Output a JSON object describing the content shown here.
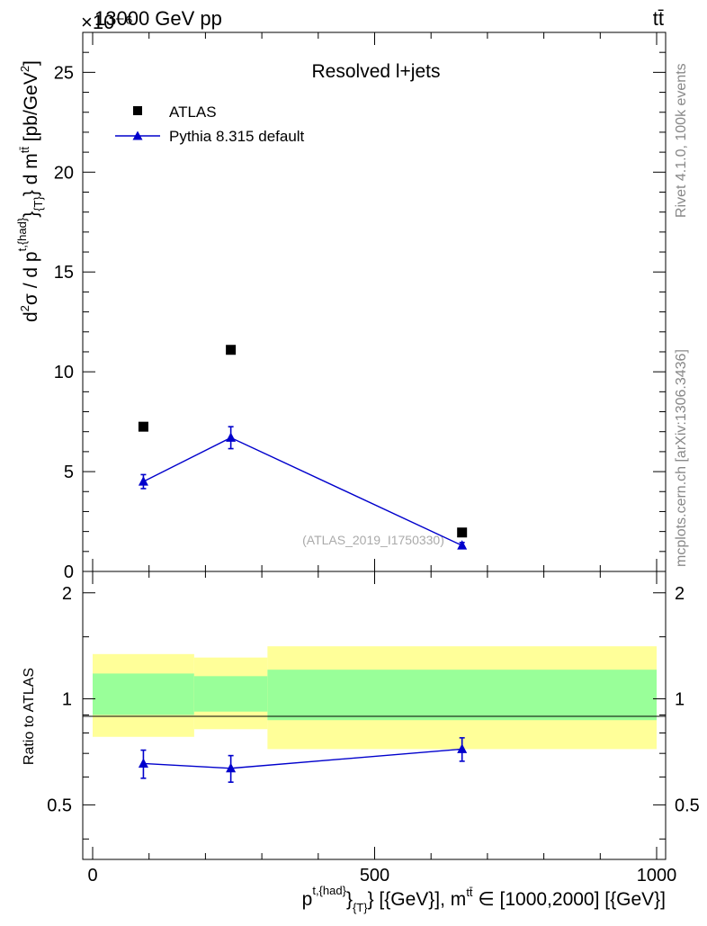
{
  "header": {
    "process": "13000 GeV pp",
    "process_glyph": "tt̄",
    "exponent_label": "×10⁻⁶",
    "side_rivet": "Rivet 4.1.0,  100k events",
    "side_source": "mcplots.cern.ch [arXiv:1306.3436]"
  },
  "colors": {
    "data": "#000000",
    "mc": "#0000cc",
    "band_outer": "#ffff99",
    "band_inner": "#99ff99"
  },
  "chart_data": [
    {
      "type": "scatter",
      "title": "Resolved l+jets",
      "watermark": "(ATLAS_2019_I1750330)",
      "ylabel": "d²σ / d p^{t,{had}}_{T} d m^{tt̄} [pb/GeV²]",
      "ylabel_parts": {
        "pre": "d",
        "sup1": "2",
        "mid1": "σ / d p",
        "sup2": "t,{had}",
        "mid2": "}",
        "sub2": "{T}",
        "mid3": "} d m",
        "sup3": "tt̄",
        "post": " [pb/GeV",
        "sup4": "2",
        "end": "]"
      },
      "xlim": [
        0,
        1000
      ],
      "ylim": [
        0,
        27
      ],
      "yticks": [
        "0",
        "5",
        "10",
        "15",
        "20",
        "25"
      ],
      "ytick_values": [
        0,
        5,
        10,
        15,
        20,
        25
      ],
      "legend": [
        "ATLAS",
        "Pythia 8.315 default"
      ],
      "series": [
        {
          "name": "ATLAS",
          "marker": "square",
          "x": [
            90,
            245,
            655
          ],
          "y": [
            7.25,
            11.1,
            1.95
          ]
        },
        {
          "name": "Pythia 8.315 default",
          "marker": "triangle",
          "x": [
            90,
            245,
            655
          ],
          "y": [
            4.5,
            6.7,
            1.3
          ],
          "yerr": [
            0.35,
            0.55,
            0.15
          ]
        }
      ]
    },
    {
      "type": "line",
      "ylabel": "Ratio to ATLAS",
      "xlabel": "p^{t,{had}}_{T} [{GeV}], m^{tt̄} ∈ [1000,2000] [{GeV}]",
      "xlabel_parts": {
        "pre": "p",
        "sup1": "t,{had}",
        "mid1": "}",
        "sub1": "{T}",
        "mid2": "} [{GeV}], m",
        "sup2": "tt̄",
        "post": " ∈ [1000,2000] [{GeV}]"
      },
      "xlim": [
        0,
        1000
      ],
      "ylim": [
        0.35,
        2.3
      ],
      "xticks": [
        "0",
        "500",
        "1000"
      ],
      "xtick_values": [
        0,
        500,
        1000
      ],
      "yticks": [
        "0.5",
        "1",
        "2"
      ],
      "ytick_values": [
        0.5,
        1,
        2
      ],
      "bands": [
        {
          "x0": 0,
          "x1": 180,
          "outer": [
            0.78,
            1.34
          ],
          "inner": [
            0.9,
            1.18
          ]
        },
        {
          "x0": 180,
          "x1": 310,
          "outer": [
            0.82,
            1.31
          ],
          "inner": [
            0.92,
            1.16
          ]
        },
        {
          "x0": 310,
          "x1": 1000,
          "outer": [
            0.72,
            1.41
          ],
          "inner": [
            0.87,
            1.21
          ]
        }
      ],
      "series": [
        {
          "name": "Pythia 8.315 default",
          "marker": "triangle",
          "x": [
            90,
            245,
            655
          ],
          "y": [
            0.655,
            0.635,
            0.72
          ],
          "yerr": [
            0.06,
            0.055,
            0.055
          ]
        }
      ]
    }
  ]
}
